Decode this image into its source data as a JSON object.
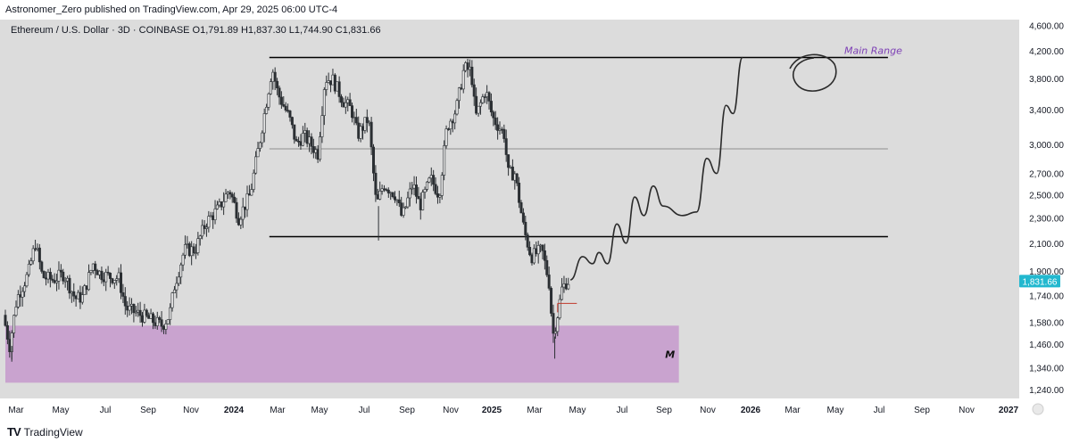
{
  "header": {
    "published_line": "Astronomer_Zero published on TradingView.com, Apr 29, 2025 06:00 UTC-4",
    "symbol_line": "Ethereum / U.S. Dollar · 3D · COINBASE  O1,791.89  H1,837.30  L1,744.90  C1,831.66"
  },
  "footer": {
    "brand": "TradingView",
    "logo_mark": "TV"
  },
  "colors": {
    "background": "#dcdcdc",
    "candle": "#2b2f33",
    "range_line": "#000000",
    "mid_line": "#8e8e8e",
    "demand_zone": "#c9a3cf",
    "last_price_bg": "#22b8cf",
    "annotation_text": "#7d3fb5",
    "red_marker": "#c0392b"
  },
  "chart_data": {
    "type": "candlestick",
    "symbol": "Ethereum / U.S. Dollar",
    "interval": "3D",
    "exchange": "COINBASE",
    "ohlc": {
      "open": 1791.89,
      "high": 1837.3,
      "low": 1744.9,
      "close": 1831.66
    },
    "last_price_label": "1,831.66",
    "y_axis": {
      "scale": "log",
      "ticks": [
        "4,600.00",
        "4,200.00",
        "3,800.00",
        "3,400.00",
        "3,000.00",
        "2,700.00",
        "2,500.00",
        "2,300.00",
        "2,100.00",
        "1,900.00",
        "1,740.00",
        "1,580.00",
        "1,460.00",
        "1,340.00",
        "1,240.00"
      ],
      "range": [
        1200,
        4700
      ]
    },
    "x_axis": {
      "ticks": [
        "Mar",
        "May",
        "Jul",
        "Sep",
        "Nov",
        "2024",
        "Mar",
        "May",
        "Jul",
        "Sep",
        "Nov",
        "2025",
        "Mar",
        "May",
        "Jul",
        "Sep",
        "Nov",
        "2026",
        "Mar",
        "May",
        "Jul",
        "Sep",
        "Nov",
        "2027"
      ],
      "bold_ticks": [
        "2024",
        "2025",
        "2026",
        "2027"
      ],
      "range": [
        "2023-03-01",
        "2027-01-20"
      ]
    },
    "price_path": [
      [
        "2023-03-01",
        1620
      ],
      [
        "2023-03-10",
        1450
      ],
      [
        "2023-03-20",
        1720
      ],
      [
        "2023-04-05",
        1880
      ],
      [
        "2023-04-15",
        2100
      ],
      [
        "2023-04-25",
        1860
      ],
      [
        "2023-05-10",
        1840
      ],
      [
        "2023-05-25",
        1880
      ],
      [
        "2023-06-10",
        1720
      ],
      [
        "2023-06-20",
        1730
      ],
      [
        "2023-07-05",
        1950
      ],
      [
        "2023-07-15",
        1880
      ],
      [
        "2023-07-30",
        1860
      ],
      [
        "2023-08-10",
        1850
      ],
      [
        "2023-08-20",
        1660
      ],
      [
        "2023-09-05",
        1630
      ],
      [
        "2023-09-20",
        1600
      ],
      [
        "2023-10-10",
        1560
      ],
      [
        "2023-10-20",
        1620
      ],
      [
        "2023-10-27",
        1800
      ],
      [
        "2023-11-10",
        2050
      ],
      [
        "2023-11-25",
        2050
      ],
      [
        "2023-12-10",
        2260
      ],
      [
        "2023-12-28",
        2380
      ],
      [
        "2024-01-12",
        2550
      ],
      [
        "2024-01-25",
        2300
      ],
      [
        "2024-02-10",
        2500
      ],
      [
        "2024-02-25",
        3100
      ],
      [
        "2024-03-12",
        3950
      ],
      [
        "2024-03-20",
        3600
      ],
      [
        "2024-04-05",
        3300
      ],
      [
        "2024-04-15",
        3000
      ],
      [
        "2024-04-25",
        3100
      ],
      [
        "2024-05-15",
        2900
      ],
      [
        "2024-05-25",
        3800
      ],
      [
        "2024-06-05",
        3780
      ],
      [
        "2024-06-20",
        3500
      ],
      [
        "2024-07-01",
        3400
      ],
      [
        "2024-07-10",
        3100
      ],
      [
        "2024-07-25",
        3300
      ],
      [
        "2024-08-05",
        2400
      ],
      [
        "2024-08-15",
        2600
      ],
      [
        "2024-09-01",
        2500
      ],
      [
        "2024-09-10",
        2300
      ],
      [
        "2024-09-25",
        2600
      ],
      [
        "2024-10-05",
        2400
      ],
      [
        "2024-10-20",
        2650
      ],
      [
        "2024-11-01",
        2500
      ],
      [
        "2024-11-12",
        3200
      ],
      [
        "2024-11-25",
        3400
      ],
      [
        "2024-12-06",
        3950
      ],
      [
        "2024-12-16",
        3900
      ],
      [
        "2024-12-22",
        3300
      ],
      [
        "2025-01-05",
        3650
      ],
      [
        "2025-01-15",
        3300
      ],
      [
        "2025-02-01",
        3100
      ],
      [
        "2025-02-05",
        2700
      ],
      [
        "2025-02-15",
        2700
      ],
      [
        "2025-02-28",
        2200
      ],
      [
        "2025-03-10",
        2000
      ],
      [
        "2025-03-25",
        2050
      ],
      [
        "2025-04-05",
        1800
      ],
      [
        "2025-04-09",
        1500
      ],
      [
        "2025-04-15",
        1600
      ],
      [
        "2025-04-22",
        1780
      ],
      [
        "2025-04-29",
        1831.66
      ]
    ],
    "annotations": {
      "main_range_label": "Main Range",
      "zone_label": "M",
      "range_top": 4100,
      "range_mid": 2950,
      "range_bottom": 2150,
      "range_start": "2024-03-05",
      "range_end": "2026-07-20",
      "demand_zone": {
        "top": 1560,
        "bottom": 1270,
        "start": "2023-03-01",
        "end": "2025-09-30"
      },
      "red_marker": {
        "price": 1690,
        "start": "2025-04-13",
        "end": "2025-05-10"
      },
      "projection_path": [
        [
          "2025-05-01",
          1840
        ],
        [
          "2025-05-18",
          2000
        ],
        [
          "2025-06-01",
          1950
        ],
        [
          "2025-06-10",
          2030
        ],
        [
          "2025-06-22",
          1950
        ],
        [
          "2025-07-05",
          2250
        ],
        [
          "2025-07-18",
          2100
        ],
        [
          "2025-07-30",
          2480
        ],
        [
          "2025-08-12",
          2320
        ],
        [
          "2025-08-25",
          2580
        ],
        [
          "2025-09-08",
          2400
        ],
        [
          "2025-10-05",
          2320
        ],
        [
          "2025-10-25",
          2350
        ],
        [
          "2025-11-08",
          2850
        ],
        [
          "2025-11-22",
          2700
        ],
        [
          "2025-12-05",
          3450
        ],
        [
          "2025-12-15",
          3350
        ],
        [
          "2025-12-28",
          4100
        ]
      ]
    }
  }
}
